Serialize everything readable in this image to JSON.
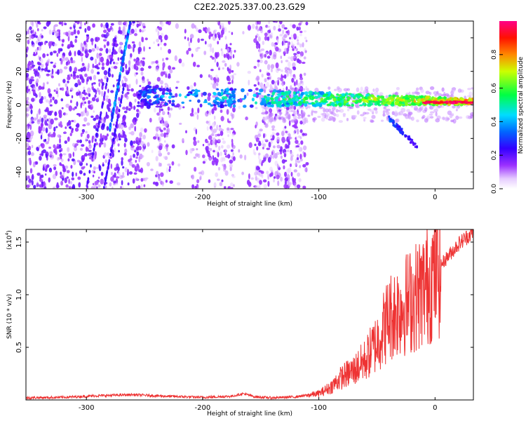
{
  "title": "C2E2.2025.337.00.23.G29",
  "chart_data": [
    {
      "type": "heatmap",
      "title": "C2E2.2025.337.00.23.G29",
      "xlabel": "Height of straight line (km)",
      "ylabel": "Frequency (Hz)",
      "xlim": [
        -352,
        33
      ],
      "ylim": [
        -50,
        50
      ],
      "x_ticks": [
        -300,
        -200,
        -100,
        0
      ],
      "y_ticks": [
        -40,
        -20,
        0,
        20,
        40
      ],
      "colorbar": {
        "label": "Normalized spectral amplitude",
        "range": [
          0.0,
          1.0
        ],
        "ticks": [
          0.0,
          0.2,
          0.4,
          0.6,
          0.8
        ],
        "tick_labels": [
          "0.0",
          "0.2",
          "0.4",
          "0.6",
          "0.8"
        ],
        "colormap": "rainbow (white→purple→blue→cyan→green→yellow→red→magenta)"
      },
      "features": [
        {
          "name": "main-signal",
          "x_range": [
            -255,
            33
          ],
          "freq_start": 5,
          "freq_end": 2,
          "peak_amplitude": 1.0
        },
        {
          "name": "tilted-streak",
          "x_start": -280,
          "freq_start": -15,
          "x_end": -262,
          "freq_end": 50
        },
        {
          "name": "descending-branch",
          "x_start": -40,
          "freq_start": -8,
          "x_end": -15,
          "freq_end": -25
        }
      ]
    },
    {
      "type": "line",
      "xlabel": "Height of straight line (km)",
      "ylabel": "SNR (10 * v/v)",
      "y_scale_label": "(x10",
      "y_scale_exp": "4",
      "y_scale_suffix": ")",
      "xlim": [
        -352,
        33
      ],
      "ylim": [
        0,
        1.62
      ],
      "x_ticks": [
        -300,
        -200,
        -100,
        0
      ],
      "y_ticks": [
        0.5,
        1.0,
        1.5
      ],
      "y_tick_labels": [
        "0.5",
        "1.0",
        "1.5"
      ],
      "color": "#ee3333",
      "series": [
        {
          "name": "SNR",
          "x": [
            -352,
            -320,
            -290,
            -260,
            -230,
            -200,
            -175,
            -165,
            -155,
            -140,
            -120,
            -100,
            -90,
            -80,
            -70,
            -60,
            -50,
            -40,
            -30,
            -20,
            -10,
            0,
            10,
            20,
            33
          ],
          "y": [
            0.02,
            0.025,
            0.04,
            0.05,
            0.035,
            0.025,
            0.035,
            0.06,
            0.03,
            0.02,
            0.03,
            0.06,
            0.12,
            0.22,
            0.28,
            0.38,
            0.55,
            0.78,
            0.88,
            0.95,
            1.05,
            1.22,
            1.35,
            1.48,
            1.6
          ]
        }
      ]
    }
  ]
}
